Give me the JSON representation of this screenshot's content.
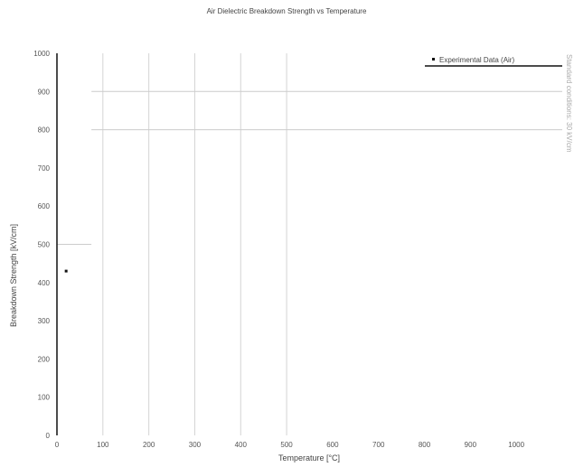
{
  "chart_data": {
    "type": "scatter",
    "title": "Air Dielectric Breakdown Strength vs Temperature",
    "xlabel": "Temperature [°C]",
    "ylabel": "Breakdown Strength [kV/cm]",
    "xlim": [
      0,
      1100
    ],
    "ylim": [
      0,
      1000
    ],
    "x_ticks": [
      "0",
      "100",
      "200",
      "300",
      "400",
      "500",
      "600",
      "700",
      "800",
      "900",
      "1000"
    ],
    "y_ticks": [
      "0",
      "100",
      "200",
      "300",
      "400",
      "500",
      "600",
      "700",
      "800",
      "900",
      "1000"
    ],
    "series": [
      {
        "name": "Experimental Data (Air)",
        "x": [
          20
        ],
        "y": [
          430
        ]
      }
    ],
    "reference_lines": [
      {
        "axis": "y",
        "value": 500,
        "x_range": [
          0,
          75
        ]
      },
      {
        "axis": "y",
        "value": 900,
        "x_range": [
          75,
          1100
        ]
      },
      {
        "axis": "y",
        "value": 800,
        "x_range": [
          75,
          1100
        ]
      }
    ],
    "vertical_gridlines": [
      100,
      200,
      300,
      400,
      500
    ],
    "side_note": "Standard conditions: 30 kV/cm",
    "legend_position": "top-right",
    "grid": true
  }
}
